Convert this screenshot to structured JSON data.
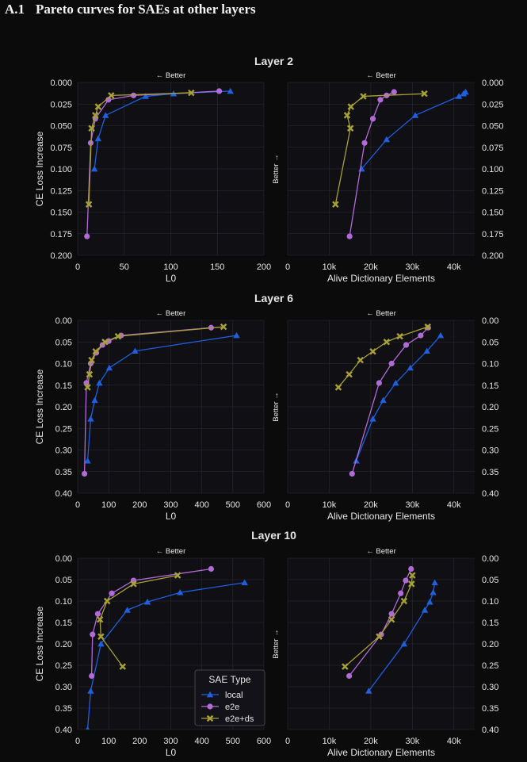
{
  "section": {
    "number": "A.1",
    "title": "Pareto curves for SAEs at other layers"
  },
  "colors": {
    "background": "#0b0b0c",
    "panel": "#0f0f14",
    "grid": "#2a2a32",
    "text": "#e6e6e6",
    "local": "#1f5fe0",
    "e2e": "#b26ad8",
    "e2e+ds": "#a8a135"
  },
  "shared": {
    "ylabel": "CE Loss Increase",
    "better_top": "← Better",
    "better_side": "Better →",
    "left_xlabel": "L0",
    "right_xlabel": "Alive Dictionary Elements"
  },
  "legend": {
    "title": "SAE Type",
    "entries": [
      {
        "name": "local",
        "marker": "triangle"
      },
      {
        "name": "e2e",
        "marker": "circle"
      },
      {
        "name": "e2e+ds",
        "marker": "x"
      }
    ]
  },
  "chart_data": [
    {
      "type": "line",
      "title": "Layer 2",
      "ylim": [
        0.2,
        0.0
      ],
      "yticks": [
        0.0,
        0.025,
        0.05,
        0.075,
        0.1,
        0.125,
        0.15,
        0.175,
        0.2
      ],
      "ytick_labels": [
        "0.000",
        "0.025",
        "0.050",
        "0.075",
        "0.100",
        "0.125",
        "0.150",
        "0.175",
        "0.200"
      ],
      "left": {
        "xlabel": "L0",
        "xlim": [
          0,
          200
        ],
        "xticks": [
          0,
          50,
          100,
          150,
          200
        ],
        "xtick_labels": [
          "0",
          "50",
          "100",
          "150",
          "200"
        ],
        "series": [
          {
            "name": "local",
            "x": [
              18,
              22,
              30,
              73,
              103,
              164
            ],
            "y": [
              0.1,
              0.065,
              0.038,
              0.016,
              0.013,
              0.01
            ]
          },
          {
            "name": "e2e",
            "x": [
              10,
              14,
              19,
              33,
              60,
              152
            ],
            "y": [
              0.178,
              0.07,
              0.042,
              0.02,
              0.015,
              0.01
            ]
          },
          {
            "name": "e2e+ds",
            "x": [
              12,
              15,
              19,
              22,
              36,
              122
            ],
            "y": [
              0.141,
              0.053,
              0.038,
              0.028,
              0.015,
              0.012
            ]
          }
        ]
      },
      "right": {
        "xlabel": "Alive Dictionary Elements",
        "xlim": [
          0,
          45000
        ],
        "xticks": [
          0,
          10000,
          20000,
          30000,
          40000
        ],
        "xtick_labels": [
          "0",
          "10k",
          "20k",
          "30k",
          "40k"
        ],
        "series": [
          {
            "name": "local",
            "x": [
              17800,
              23800,
              30700,
              41200,
              42300,
              42800
            ],
            "y": [
              0.1,
              0.066,
              0.038,
              0.016,
              0.013,
              0.011
            ]
          },
          {
            "name": "e2e",
            "x": [
              14900,
              18500,
              20500,
              22300,
              23800,
              25600
            ],
            "y": [
              0.178,
              0.07,
              0.042,
              0.02,
              0.015,
              0.011
            ]
          },
          {
            "name": "e2e+ds",
            "x": [
              11500,
              15100,
              14300,
              15200,
              18200,
              32900
            ],
            "y": [
              0.141,
              0.053,
              0.038,
              0.028,
              0.016,
              0.013
            ]
          }
        ]
      }
    },
    {
      "type": "line",
      "title": "Layer 6",
      "ylim": [
        0.4,
        0.0
      ],
      "yticks": [
        0.0,
        0.05,
        0.1,
        0.15,
        0.2,
        0.25,
        0.3,
        0.35,
        0.4
      ],
      "ytick_labels": [
        "0.00",
        "0.05",
        "0.10",
        "0.15",
        "0.20",
        "0.25",
        "0.30",
        "0.35",
        "0.40"
      ],
      "left": {
        "xlabel": "L0",
        "xlim": [
          0,
          600
        ],
        "xticks": [
          0,
          100,
          200,
          300,
          400,
          500,
          600
        ],
        "xtick_labels": [
          "0",
          "100",
          "200",
          "300",
          "400",
          "500",
          "600"
        ],
        "series": [
          {
            "name": "local",
            "x": [
              32,
              42,
              55,
              70,
              102,
              185,
              512
            ],
            "y": [
              0.325,
              0.228,
              0.185,
              0.145,
              0.11,
              0.071,
              0.035
            ]
          },
          {
            "name": "e2e",
            "x": [
              22,
              28,
              42,
              60,
              80,
              100,
              140,
              430
            ],
            "y": [
              0.355,
              0.145,
              0.1,
              0.075,
              0.057,
              0.048,
              0.035,
              0.017
            ]
          },
          {
            "name": "e2e+ds",
            "x": [
              32,
              38,
              45,
              58,
              88,
              130,
              470
            ],
            "y": [
              0.155,
              0.125,
              0.092,
              0.072,
              0.05,
              0.037,
              0.015
            ]
          }
        ]
      },
      "right": {
        "xlabel": "Alive Dictionary Elements",
        "xlim": [
          0,
          45000
        ],
        "xticks": [
          0,
          10000,
          20000,
          30000,
          40000
        ],
        "xtick_labels": [
          "0",
          "10k",
          "20k",
          "30k",
          "40k"
        ],
        "series": [
          {
            "name": "local",
            "x": [
              16500,
              20500,
              23000,
              26000,
              29500,
              33500,
              36800
            ],
            "y": [
              0.325,
              0.228,
              0.185,
              0.145,
              0.11,
              0.071,
              0.035
            ]
          },
          {
            "name": "e2e",
            "x": [
              15500,
              22000,
              25000,
              28500,
              32000,
              33800
            ],
            "y": [
              0.355,
              0.145,
              0.1,
              0.057,
              0.035,
              0.017
            ]
          },
          {
            "name": "e2e+ds",
            "x": [
              12200,
              14800,
              17500,
              20500,
              23800,
              27000,
              33700
            ],
            "y": [
              0.155,
              0.125,
              0.092,
              0.072,
              0.05,
              0.037,
              0.015
            ]
          }
        ]
      }
    },
    {
      "type": "line",
      "title": "Layer 10",
      "ylim": [
        0.4,
        0.0
      ],
      "yticks": [
        0.0,
        0.05,
        0.1,
        0.15,
        0.2,
        0.25,
        0.3,
        0.35,
        0.4
      ],
      "ytick_labels": [
        "0.00",
        "0.05",
        "0.10",
        "0.15",
        "0.20",
        "0.25",
        "0.30",
        "0.35",
        "0.40"
      ],
      "left": {
        "xlabel": "L0",
        "xlim": [
          0,
          600
        ],
        "xticks": [
          0,
          100,
          200,
          300,
          400,
          500,
          600
        ],
        "xtick_labels": [
          "0",
          "100",
          "200",
          "300",
          "400",
          "500",
          "600"
        ],
        "series": [
          {
            "name": "local",
            "x": [
              32,
              42,
              75,
              160,
              225,
              330,
              538
            ],
            "y": [
              0.4,
              0.31,
              0.2,
              0.121,
              0.102,
              0.08,
              0.057
            ]
          },
          {
            "name": "e2e",
            "x": [
              45,
              48,
              65,
              110,
              180,
              430
            ],
            "y": [
              0.275,
              0.178,
              0.13,
              0.082,
              0.052,
              0.025
            ]
          },
          {
            "name": "e2e+ds",
            "x": [
              145,
              75,
              72,
              95,
              180,
              322
            ],
            "y": [
              0.253,
              0.183,
              0.143,
              0.1,
              0.06,
              0.04
            ]
          }
        ]
      },
      "right": {
        "xlabel": "Alive Dictionary Elements",
        "xlim": [
          0,
          45000
        ],
        "xticks": [
          0,
          10000,
          20000,
          30000,
          40000
        ],
        "xtick_labels": [
          "0",
          "10k",
          "20k",
          "30k",
          "40k"
        ],
        "series": [
          {
            "name": "local",
            "x": [
              19500,
              28000,
              33000,
              34200,
              35000,
              35400
            ],
            "y": [
              0.31,
              0.2,
              0.121,
              0.102,
              0.08,
              0.057
            ]
          },
          {
            "name": "e2e",
            "x": [
              14800,
              22500,
              25000,
              27200,
              28400,
              29700
            ],
            "y": [
              0.275,
              0.178,
              0.13,
              0.082,
              0.052,
              0.025
            ]
          },
          {
            "name": "e2e+ds",
            "x": [
              13800,
              22000,
              25000,
              28000,
              29800,
              30000
            ],
            "y": [
              0.253,
              0.183,
              0.143,
              0.1,
              0.06,
              0.04
            ]
          }
        ]
      }
    }
  ]
}
